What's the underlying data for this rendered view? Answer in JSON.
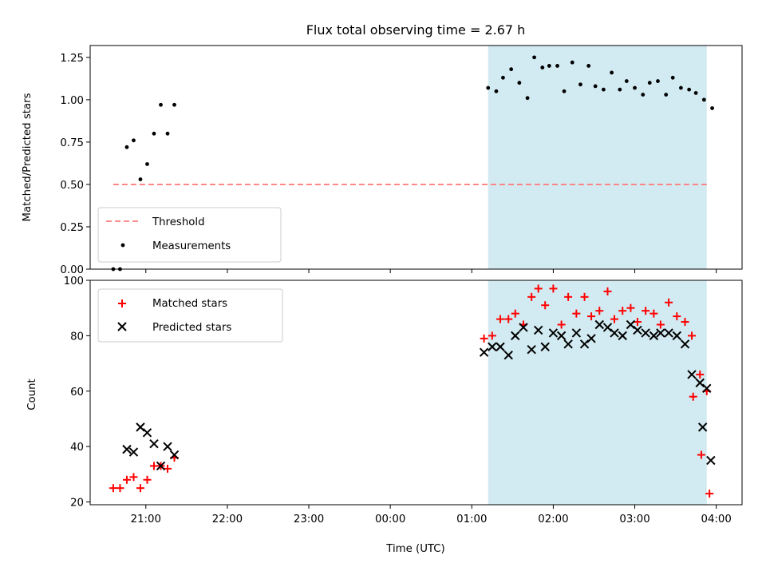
{
  "chart_data": [
    {
      "type": "scatter",
      "title": "Flux total observing time = 2.67 h",
      "xlabel": "",
      "ylabel": "Matched/Predicted stars",
      "ylim": [
        0,
        1.32
      ],
      "yticks": [
        "0.00",
        "0.25",
        "0.50",
        "0.75",
        "1.00",
        "1.25"
      ],
      "ytick_values": [
        0,
        0.25,
        0.5,
        0.75,
        1.0,
        1.25
      ],
      "xlim": [
        "20:19",
        "04:19"
      ],
      "shaded_span": {
        "start": "01:12",
        "end": "03:53",
        "color": "#add8e6"
      },
      "grid": false,
      "legend_position": "lower-left",
      "threshold": {
        "name": "Threshold",
        "value": 0.5,
        "x_start": "20:36",
        "x_end": "03:53",
        "color": "#ff7f7f"
      },
      "series": [
        {
          "name": "Measurements",
          "marker": "dot",
          "color": "#000000",
          "x": [
            "20:36",
            "20:41",
            "20:46",
            "20:51",
            "20:56",
            "21:01",
            "21:06",
            "21:11",
            "21:16",
            "21:21",
            "01:12",
            "01:18",
            "01:23",
            "01:29",
            "01:35",
            "01:41",
            "01:46",
            "01:52",
            "01:57",
            "02:03",
            "02:08",
            "02:14",
            "02:20",
            "02:26",
            "02:31",
            "02:37",
            "02:43",
            "02:49",
            "02:54",
            "03:00",
            "03:06",
            "03:11",
            "03:17",
            "03:23",
            "03:28",
            "03:34",
            "03:40",
            "03:45",
            "03:51",
            "03:57"
          ],
          "y": [
            0.0,
            0.0,
            0.72,
            0.76,
            0.53,
            0.62,
            0.8,
            0.97,
            0.8,
            0.97,
            1.07,
            1.05,
            1.13,
            1.18,
            1.1,
            1.01,
            1.25,
            1.19,
            1.2,
            1.2,
            1.05,
            1.22,
            1.09,
            1.2,
            1.08,
            1.06,
            1.16,
            1.06,
            1.11,
            1.07,
            1.03,
            1.1,
            1.11,
            1.03,
            1.13,
            1.07,
            1.06,
            1.04,
            1.0,
            0.95
          ]
        }
      ]
    },
    {
      "type": "scatter",
      "title": "",
      "xlabel": "Time (UTC)",
      "ylabel": "Count",
      "ylim": [
        19,
        100
      ],
      "yticks": [
        "20",
        "40",
        "60",
        "80",
        "100"
      ],
      "ytick_values": [
        20,
        40,
        60,
        80,
        100
      ],
      "xlim": [
        "20:19",
        "04:19"
      ],
      "xticks": [
        "21:00",
        "22:00",
        "23:00",
        "00:00",
        "01:00",
        "02:00",
        "03:00",
        "04:00"
      ],
      "shaded_span": {
        "start": "01:12",
        "end": "03:53",
        "color": "#add8e6"
      },
      "grid": false,
      "legend_position": "upper-left",
      "series": [
        {
          "name": "Matched stars",
          "marker": "plus",
          "color": "#ff0000",
          "x": [
            "20:36",
            "20:41",
            "20:46",
            "20:51",
            "20:56",
            "21:01",
            "21:06",
            "21:11",
            "21:16",
            "21:21",
            "01:09",
            "01:15",
            "01:21",
            "01:27",
            "01:32",
            "01:38",
            "01:44",
            "01:49",
            "01:54",
            "02:00",
            "02:06",
            "02:11",
            "02:17",
            "02:23",
            "02:28",
            "02:34",
            "02:40",
            "02:45",
            "02:51",
            "02:57",
            "03:02",
            "03:08",
            "03:14",
            "03:19",
            "03:25",
            "03:31",
            "03:37",
            "03:42",
            "03:48",
            "03:53"
          ],
          "y": [
            25,
            25,
            28,
            29,
            25,
            28,
            33,
            33,
            32,
            36,
            79,
            80,
            86,
            86,
            88,
            84,
            94,
            97,
            91,
            97,
            84,
            94,
            88,
            94,
            87,
            89,
            96,
            86,
            89,
            90,
            85,
            89,
            88,
            84,
            92,
            87,
            85,
            80,
            66,
            60
          ],
          "extra_points": [
            [
              "03:43",
              58
            ],
            [
              "03:49",
              37
            ],
            [
              "03:55",
              23
            ]
          ]
        },
        {
          "name": "Predicted stars",
          "marker": "x",
          "color": "#000000",
          "x": [
            "20:46",
            "20:51",
            "20:56",
            "21:01",
            "21:06",
            "21:11",
            "21:16",
            "21:21",
            "01:09",
            "01:15",
            "01:21",
            "01:27",
            "01:32",
            "01:38",
            "01:44",
            "01:49",
            "01:54",
            "02:00",
            "02:06",
            "02:11",
            "02:17",
            "02:23",
            "02:28",
            "02:34",
            "02:40",
            "02:45",
            "02:51",
            "02:57",
            "03:02",
            "03:08",
            "03:14",
            "03:19",
            "03:25",
            "03:31",
            "03:37",
            "03:42",
            "03:48",
            "03:53"
          ],
          "y": [
            39,
            38,
            47,
            45,
            41,
            33,
            40,
            37,
            74,
            76,
            76,
            73,
            80,
            83,
            75,
            82,
            76,
            81,
            80,
            77,
            81,
            77,
            79,
            84,
            83,
            81,
            80,
            84,
            82,
            81,
            80,
            81,
            81,
            80,
            77,
            66,
            63,
            61
          ],
          "extra_points": [
            [
              "03:50",
              47
            ],
            [
              "03:56",
              35
            ]
          ]
        }
      ]
    }
  ]
}
